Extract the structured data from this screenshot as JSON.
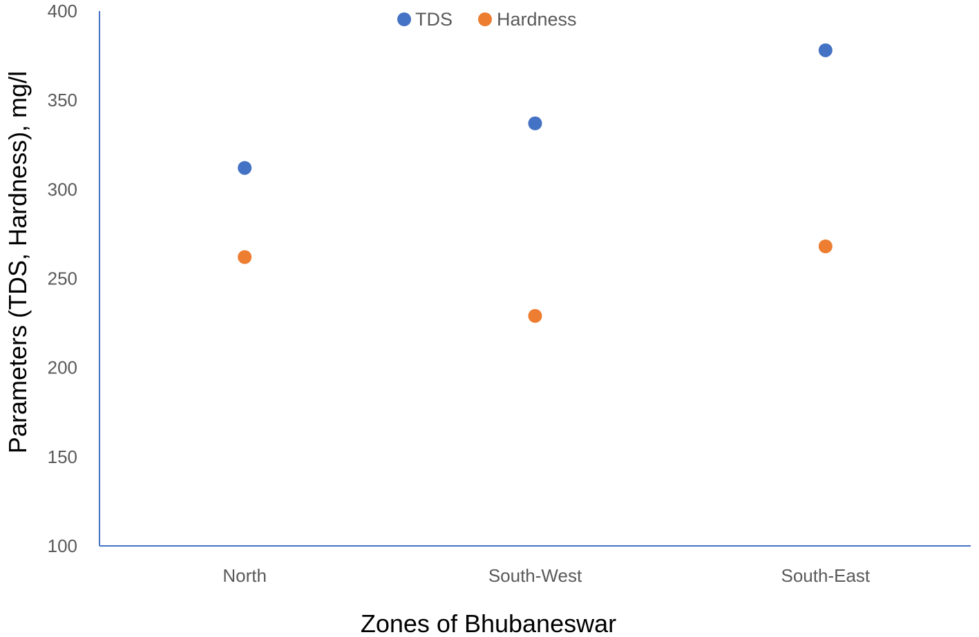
{
  "chart_data": {
    "type": "scatter",
    "title": "",
    "xlabel": "Zones of Bhubaneswar",
    "ylabel": "Parameters (TDS, Hardness),  mg/l",
    "categories": [
      "North",
      "South-West",
      "South-East"
    ],
    "ylim": [
      100,
      400
    ],
    "yticks": [
      100,
      150,
      200,
      250,
      300,
      350,
      400
    ],
    "ytick_labels": [
      "100",
      "150",
      "200",
      "250",
      "300",
      "350",
      "400"
    ],
    "grid": false,
    "legend_position": "top-center",
    "series": [
      {
        "name": "TDS",
        "color": "#4472C4",
        "values": [
          312,
          337,
          378
        ]
      },
      {
        "name": "Hardness",
        "color": "#ED7D31",
        "values": [
          262,
          229,
          268
        ]
      }
    ],
    "axis_color": "#4472C4"
  }
}
